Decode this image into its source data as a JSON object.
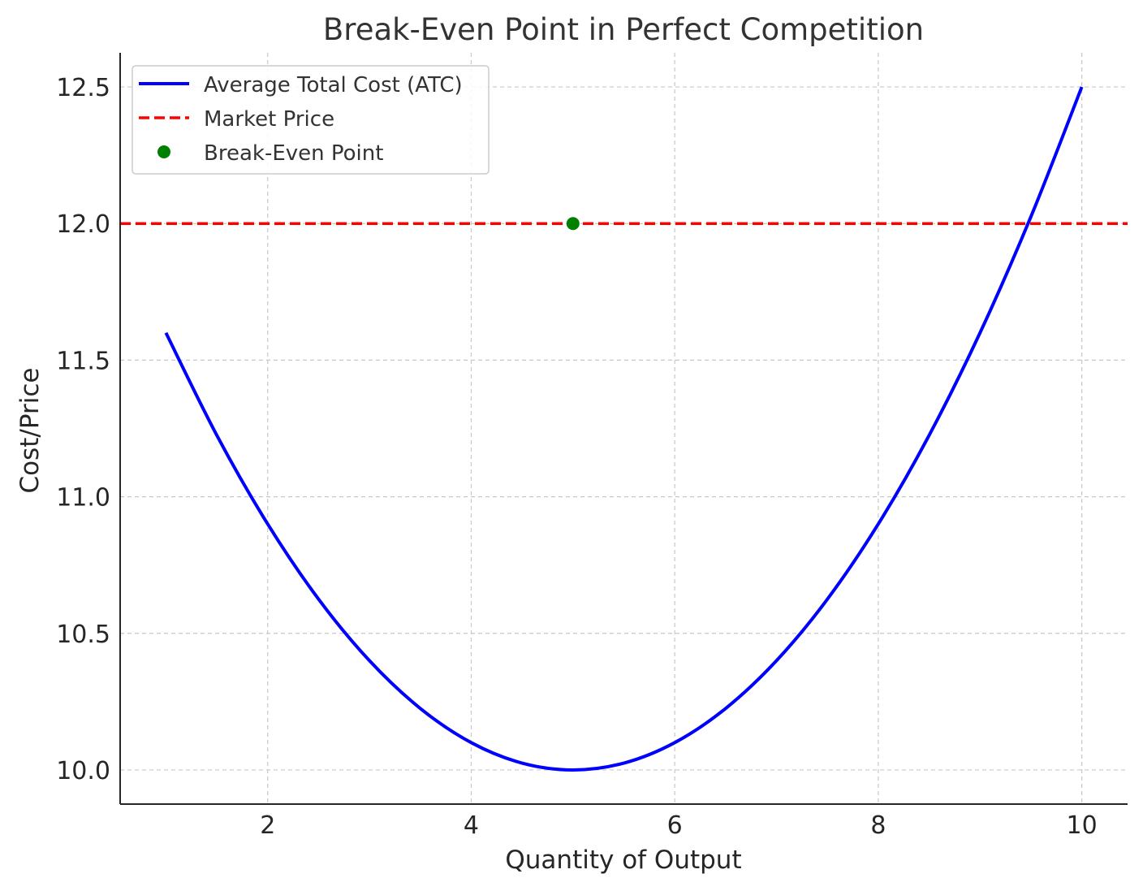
{
  "chart_data": {
    "type": "line",
    "title": "Break-Even Point in Perfect Competition",
    "xlabel": "Quantity of Output",
    "ylabel": "Cost/Price",
    "xlim": [
      0.55,
      10.45
    ],
    "ylim": [
      9.875,
      12.625
    ],
    "xticks": [
      2,
      4,
      6,
      8,
      10
    ],
    "yticks": [
      10.0,
      10.5,
      11.0,
      11.5,
      12.0,
      12.5
    ],
    "xtick_labels": [
      "2",
      "4",
      "6",
      "8",
      "10"
    ],
    "ytick_labels": [
      "10.0",
      "10.5",
      "11.0",
      "11.5",
      "12.0",
      "12.5"
    ],
    "grid": true,
    "legend_position": "top-left",
    "series": [
      {
        "name": "Average Total Cost (ATC)",
        "kind": "line",
        "color": "#0000ff",
        "x": [
          1,
          1.5,
          2,
          2.5,
          3,
          3.5,
          4,
          4.5,
          5,
          5.5,
          6,
          6.5,
          7,
          7.5,
          8,
          8.5,
          9,
          9.5,
          10
        ],
        "y": [
          11.6,
          11.225,
          10.9,
          10.625,
          10.4,
          10.225,
          10.1,
          10.025,
          10.0,
          10.025,
          10.1,
          10.225,
          10.4,
          10.625,
          10.9,
          11.225,
          11.6,
          12.025,
          12.5
        ]
      },
      {
        "name": "Market Price",
        "kind": "hline",
        "color": "#ff0000",
        "y": 12.0
      },
      {
        "name": "Break-Even Point",
        "kind": "point",
        "color": "#008000",
        "x": [
          5
        ],
        "y": [
          12.0
        ]
      }
    ]
  }
}
